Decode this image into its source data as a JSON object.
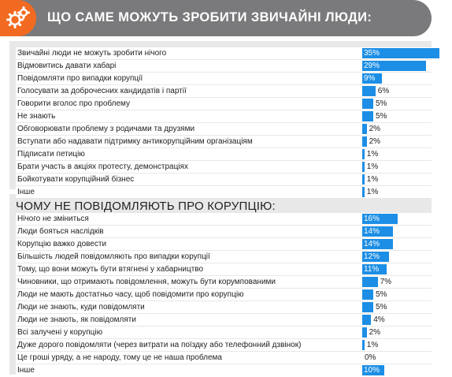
{
  "header": {
    "title": "ЩО САМЕ МОЖУТЬ ЗРОБИТИ ЗВИЧАЙНІ ЛЮДИ:"
  },
  "section2": {
    "title": "ЧОМУ НЕ ПОВІДОМЛЯЮТЬ ПРО КОРУПЦІЮ:"
  },
  "colors": {
    "accent": "#f26a21",
    "header_bg": "#7a7a7c",
    "bar": "#1c8ee5",
    "panel_bg": "#e8e8e9"
  },
  "chart_data": [
    {
      "type": "bar",
      "title": "ЩО САМЕ МОЖУТЬ ЗРОБИТИ ЗВИЧАЙНІ ЛЮДИ:",
      "categories": [
        "Звичайні люди не можуть зробити нічого",
        "Відмовитись давати хабарі",
        "Повідомляти про випадки корупції",
        "Голосувати за доброчесних кандидатів і партії",
        "Говорити вголос про проблему",
        "Не знають",
        "Обговорювати проблему з родичами та друзями",
        "Вступати або надавати підтримку антикорупційним організаціям",
        "Підписати петицію",
        "Брати участь в акціях протесту, демонстраціях",
        "Бойкотувати корупційний бізнес",
        "Інше"
      ],
      "values": [
        35,
        29,
        9,
        6,
        5,
        5,
        2,
        2,
        1,
        1,
        1,
        1
      ],
      "value_labels": [
        "35%",
        "29%",
        "9%",
        "6%",
        "5%",
        "5%",
        "2%",
        "2%",
        "1%",
        "1%",
        "1%",
        "1%"
      ]
    },
    {
      "type": "bar",
      "title": "ЧОМУ НЕ ПОВІДОМЛЯЮТЬ ПРО КОРУПЦІЮ:",
      "categories": [
        "Нічого не зміниться",
        "Люди бояться наслідків",
        "Корупцію важко довести",
        "Більшість людей повідомляють про випадки корупції",
        "Тому, що вони можуть бути втягнені у хабарництво",
        "Чиновники, що отримають повідомлення, можуть бути корумпованими",
        "Люди не мають достатньо часу, щоб повідомити про корупцію",
        "Люди не знають, куди повідомляти",
        "Люди не знають, як повідомляти",
        "Всі залучені у корупцію",
        "Дуже дорого повідомляти (через витрати на поїздку або телефонний дзвінок)",
        "Це гроші уряду, а не народу, тому це не наша проблема",
        "Інше"
      ],
      "values": [
        16,
        14,
        14,
        12,
        11,
        7,
        5,
        5,
        4,
        2,
        1,
        0,
        10
      ],
      "value_labels": [
        "16%",
        "14%",
        "14%",
        "12%",
        "11%",
        "7%",
        "5%",
        "5%",
        "4%",
        "2%",
        "1%",
        "0%",
        "10%"
      ]
    }
  ]
}
